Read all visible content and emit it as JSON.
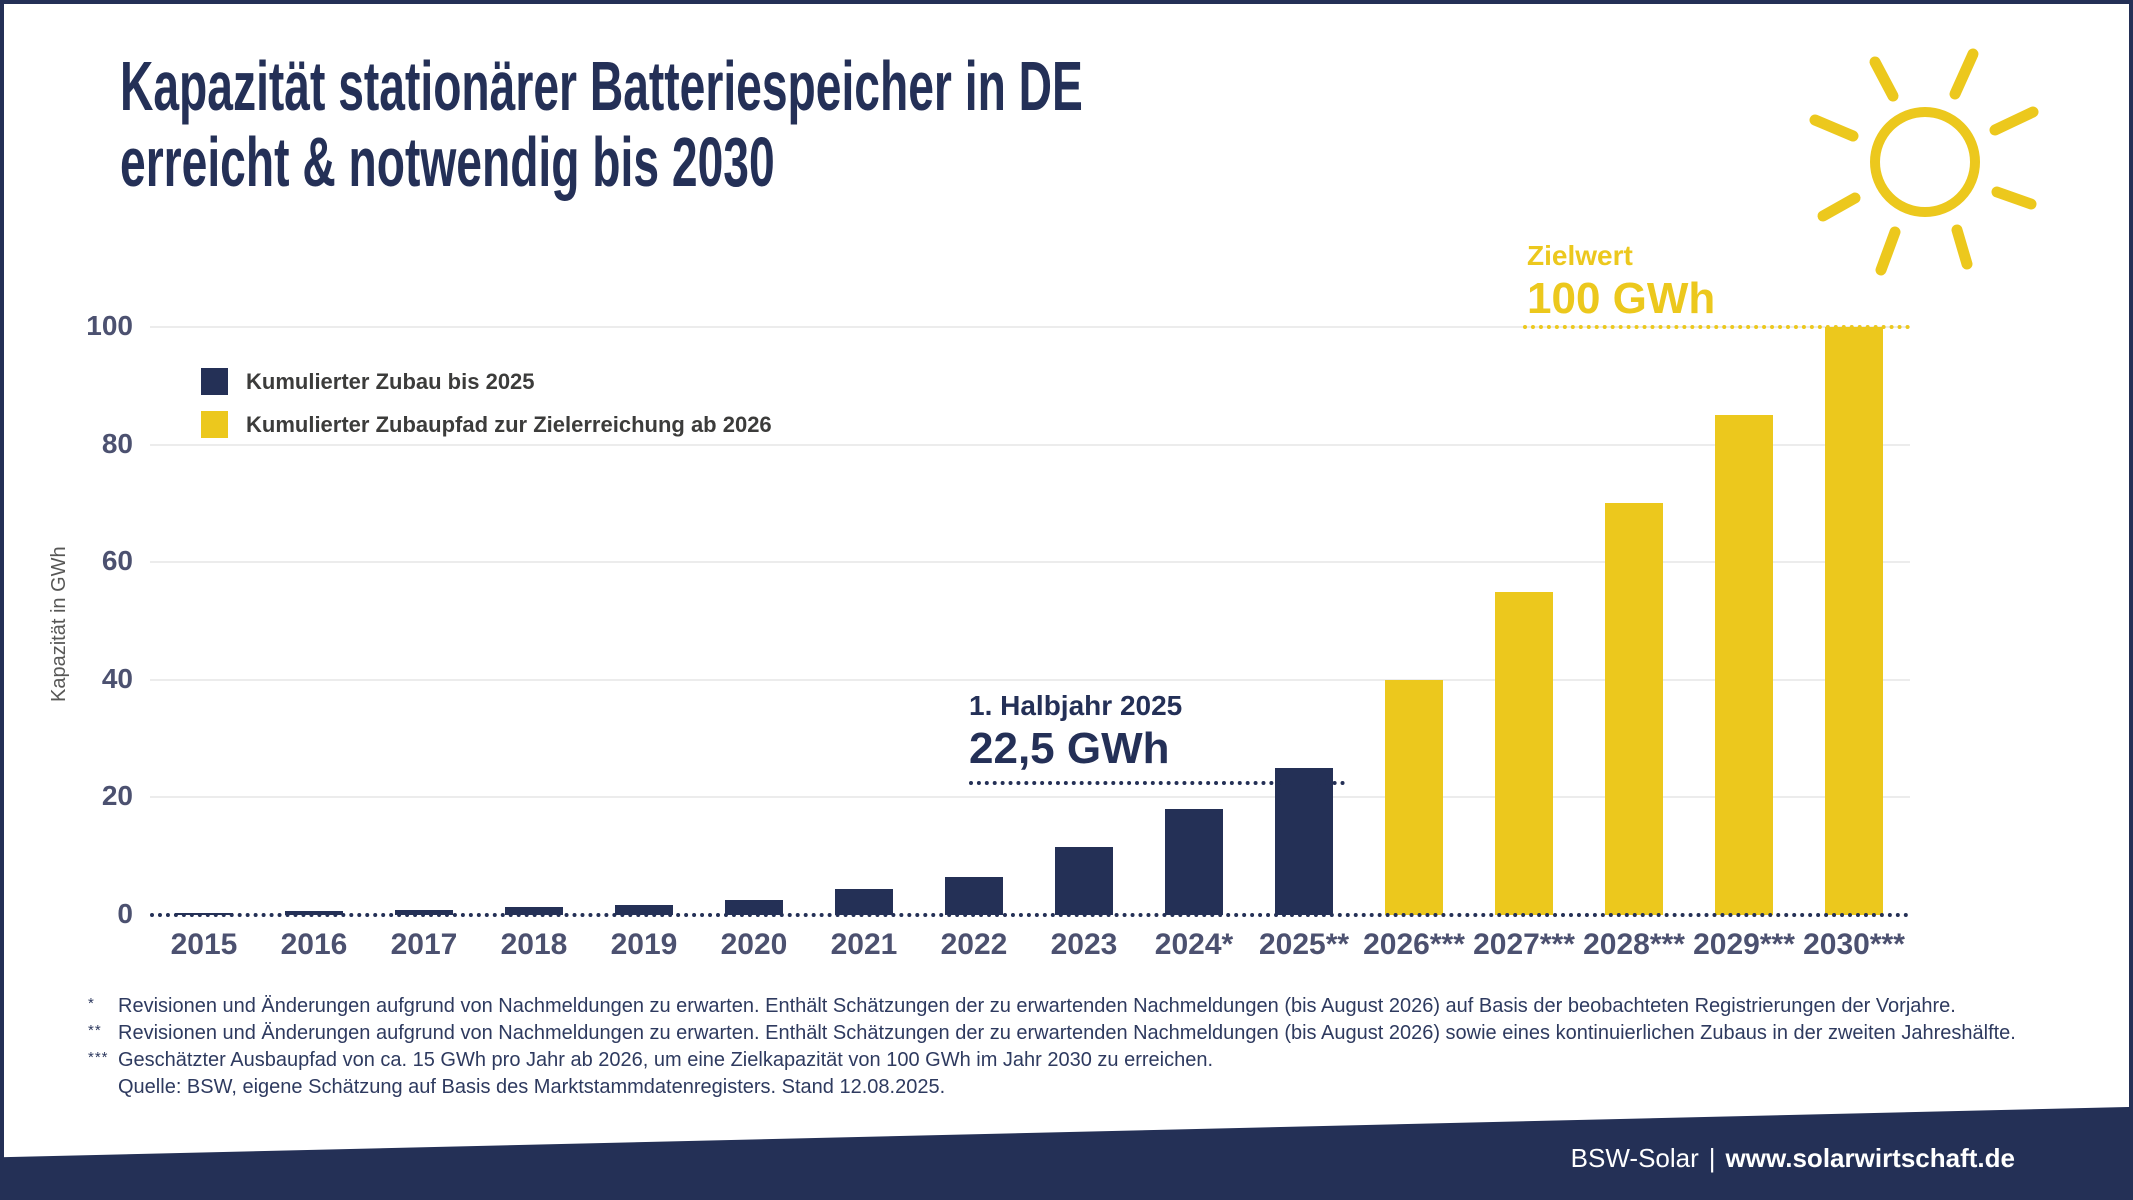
{
  "header": {
    "title_line1": "Kapazität stationärer Batteriespeicher in DE",
    "title_line2": "erreicht & notwendig bis 2030",
    "icon": "sun"
  },
  "chart_data": {
    "type": "bar",
    "title": "Kapazität stationärer Batteriespeicher in DE erreicht & notwendig bis 2030",
    "xlabel": "",
    "ylabel": "Kapazität in GWh",
    "ylim": [
      0,
      100
    ],
    "yticks": [
      0,
      20,
      40,
      60,
      80,
      100
    ],
    "grid": "horizontal",
    "legend_position": "top-left",
    "categories": [
      "2015",
      "2016",
      "2017",
      "2018",
      "2019",
      "2020",
      "2021",
      "2022",
      "2023",
      "2024*",
      "2025**",
      "2026***",
      "2027***",
      "2028***",
      "2029***",
      "2030***"
    ],
    "series": [
      {
        "name": "Kumulierter Zubau bis 2025",
        "color": "#243056",
        "values": [
          0.4,
          0.6,
          0.9,
          1.4,
          1.7,
          2.6,
          4.4,
          6.5,
          11.5,
          18,
          25,
          null,
          null,
          null,
          null,
          null
        ]
      },
      {
        "name": "Kumulierter Zubaupfad zur Zielerreichung ab 2026",
        "color": "#ECC81D",
        "values": [
          null,
          null,
          null,
          null,
          null,
          null,
          null,
          null,
          null,
          null,
          null,
          40,
          55,
          70,
          85,
          100
        ]
      }
    ],
    "annotations": [
      {
        "id": "h1-2025",
        "text_line1": "1. Halbjahr 2025",
        "text_line2": "22,5 GWh",
        "value": 22.5,
        "color": "#243056"
      },
      {
        "id": "zielwert",
        "text_line1": "Zielwert",
        "text_line2": "100 GWh",
        "value": 100,
        "color": "#ECC81D"
      }
    ]
  },
  "footnotes": {
    "items": [
      {
        "marker": "*",
        "text": "Revisionen und Änderungen aufgrund von Nachmeldungen zu erwarten. Enthält Schätzungen der zu erwartenden Nachmeldungen (bis August 2026) auf Basis der beobachteten Registrierungen der Vorjahre."
      },
      {
        "marker": "**",
        "text": "Revisionen und Änderungen aufgrund von Nachmeldungen zu erwarten. Enthält Schätzungen der zu erwartenden Nachmeldungen (bis August 2026) sowie eines kontinuierlichen Zubaus in der zweiten Jahreshälfte."
      },
      {
        "marker": "***",
        "text": "Geschätzter Ausbaupfad von ca. 15 GWh pro Jahr ab 2026, um eine Zielkapazität von 100 GWh im Jahr 2030 zu erreichen."
      },
      {
        "marker": "",
        "text": "Quelle: BSW, eigene Schätzung auf Basis des Marktstammdatenregisters. Stand 12.08.2025."
      }
    ]
  },
  "footer": {
    "brand": "BSW-Solar",
    "separator": "|",
    "url": "www.solarwirtschaft.de"
  },
  "colors": {
    "navy": "#243056",
    "yellow": "#ECC81D",
    "title_text": "#243057",
    "tick_text": "#4C5170",
    "legend_text": "#3C3C3B",
    "gridline": "#ECECEC",
    "footnote_text": "#2E3A5F",
    "footer_bg": "#243056",
    "footer_text": "#FFFFFF"
  }
}
